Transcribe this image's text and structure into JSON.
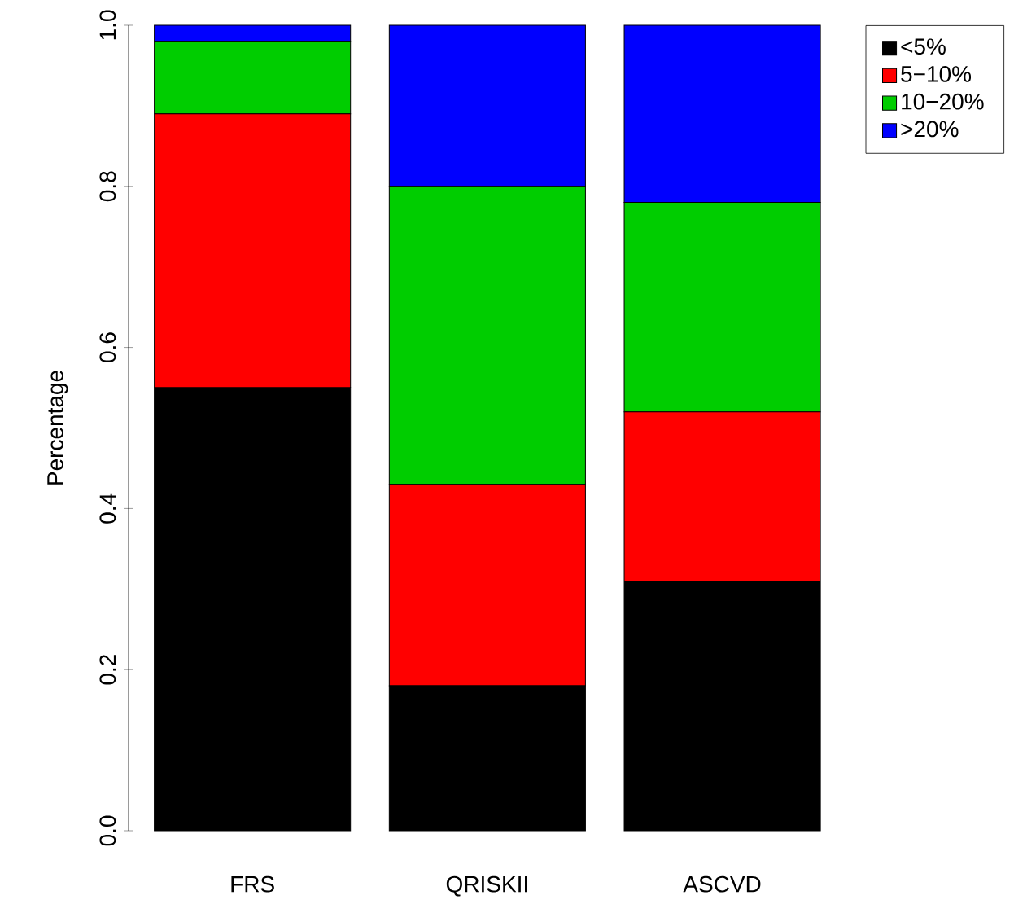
{
  "chart_data": {
    "type": "bar",
    "stacked": true,
    "ylabel": "Percentage",
    "categories": [
      "FRS",
      "QRISKII",
      "ASCVD"
    ],
    "series": [
      {
        "name": "<5%",
        "color": "#000000",
        "values": [
          0.55,
          0.18,
          0.31
        ]
      },
      {
        "name": "5−10%",
        "color": "#ff0000",
        "values": [
          0.34,
          0.25,
          0.21
        ]
      },
      {
        "name": "10−20%",
        "color": "#00cd00",
        "values": [
          0.09,
          0.37,
          0.26
        ]
      },
      {
        "name": ">20%",
        "color": "#0000ff",
        "values": [
          0.02,
          0.2,
          0.22
        ]
      }
    ],
    "ylim": [
      0,
      1
    ],
    "yticks": [
      {
        "value": 0,
        "label": "0.0"
      },
      {
        "value": 0.2,
        "label": "0.2"
      },
      {
        "value": 0.4,
        "label": "0.4"
      },
      {
        "value": 0.6,
        "label": "0.6"
      },
      {
        "value": 0.8,
        "label": "0.8"
      },
      {
        "value": 1,
        "label": "1.0"
      }
    ],
    "legend": "top right",
    "grid": false
  }
}
